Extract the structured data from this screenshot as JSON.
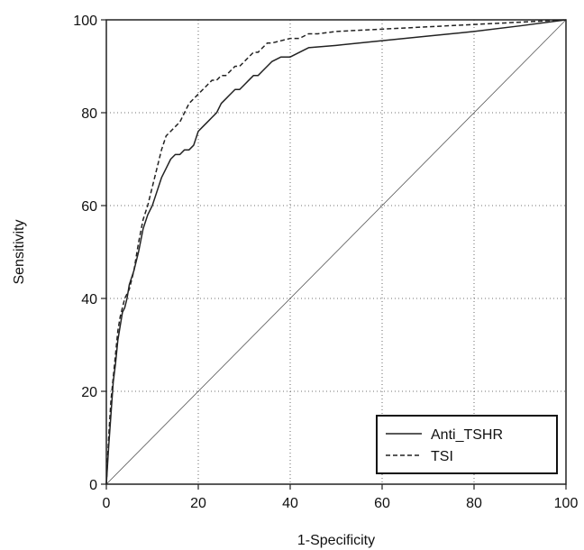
{
  "chart_data": {
    "type": "line",
    "title": "",
    "xlabel": "1-Specificity",
    "ylabel": "Sensitivity",
    "xlim": [
      0,
      100
    ],
    "ylim": [
      0,
      100
    ],
    "xticks": [
      "0",
      "20",
      "40",
      "60",
      "80",
      "100"
    ],
    "yticks": [
      "0",
      "20",
      "40",
      "60",
      "80",
      "100"
    ],
    "grid": true,
    "legend_position": "bottom-right",
    "series": [
      {
        "name": "Anti_TSHR",
        "style": "solid",
        "color": "#222222",
        "x": [
          0,
          0.5,
          1,
          1.5,
          2,
          2.5,
          3,
          3.5,
          4,
          4.5,
          5,
          6,
          7,
          8,
          9,
          10,
          11,
          12,
          13,
          14,
          15,
          16,
          17,
          18,
          19,
          20,
          21,
          22,
          23,
          24,
          25,
          26,
          27,
          28,
          29,
          30,
          31,
          32,
          33,
          34,
          35,
          36,
          38,
          40,
          42,
          44,
          50,
          60,
          70,
          80,
          90,
          100
        ],
        "y": [
          0,
          8,
          15,
          22,
          26,
          31,
          34,
          37,
          38,
          40,
          43,
          46,
          50,
          55,
          58,
          60,
          63,
          66,
          68,
          70,
          71,
          71,
          72,
          72,
          73,
          76,
          77,
          78,
          79,
          80,
          82,
          83,
          84,
          85,
          85,
          86,
          87,
          88,
          88,
          89,
          90,
          91,
          92,
          92,
          93,
          94,
          94.5,
          95.5,
          96.5,
          97.5,
          98.7,
          100
        ]
      },
      {
        "name": "TSI",
        "style": "dashed",
        "color": "#222222",
        "x": [
          0,
          0.5,
          1,
          1.5,
          2,
          2.5,
          3,
          3.5,
          4,
          5,
          6,
          7,
          8,
          9,
          10,
          11,
          12,
          13,
          14,
          15,
          16,
          17,
          18,
          19,
          20,
          21,
          22,
          23,
          24,
          25,
          26,
          27,
          28,
          29,
          30,
          31,
          32,
          33,
          34,
          35,
          36,
          38,
          40,
          42,
          44,
          46,
          50,
          60,
          70,
          80,
          90,
          100
        ],
        "y": [
          0,
          10,
          18,
          23,
          28,
          33,
          36,
          38,
          40,
          42,
          46,
          52,
          57,
          60,
          64,
          68,
          72,
          75,
          76,
          77,
          78,
          80,
          82,
          83,
          84,
          85,
          86,
          87,
          87,
          88,
          88,
          89,
          90,
          90,
          91,
          92,
          93,
          93,
          94,
          95,
          95,
          95.5,
          96,
          96,
          97,
          97,
          97.5,
          98,
          98.5,
          99,
          99.5,
          100
        ]
      }
    ]
  }
}
